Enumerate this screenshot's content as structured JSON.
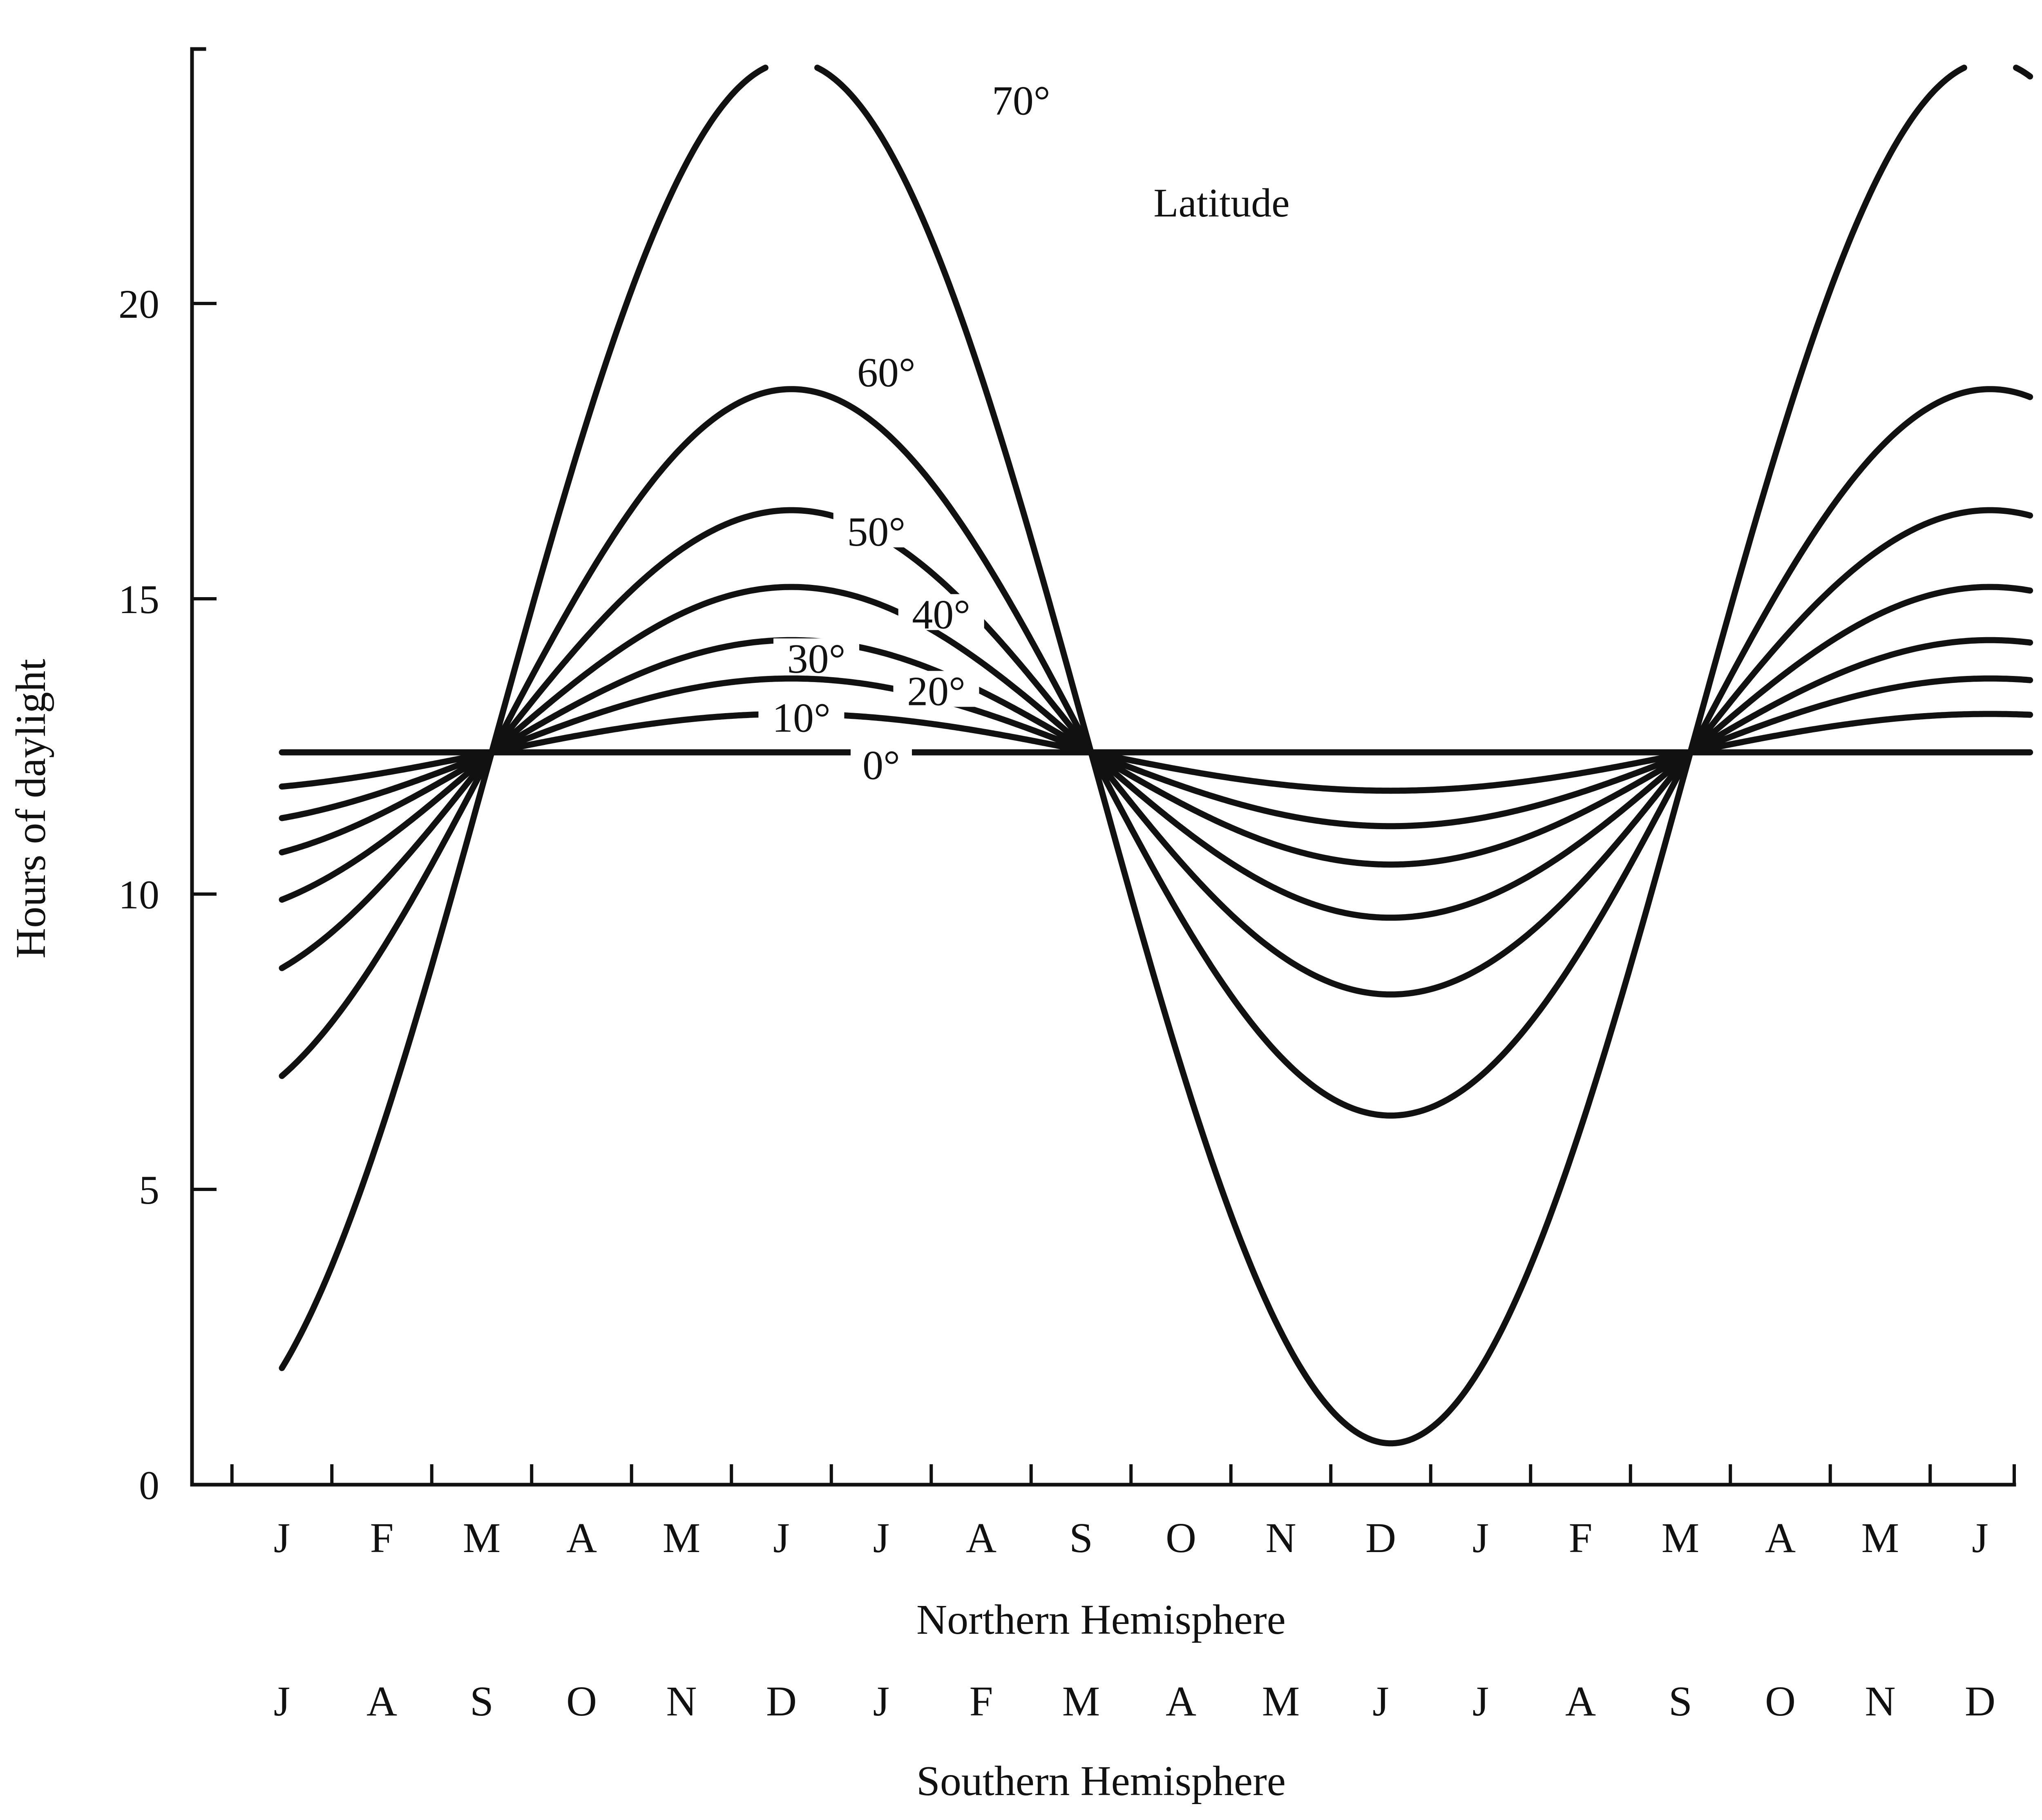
{
  "chart_data": {
    "type": "line",
    "title": "",
    "ylabel": "Hours of daylight",
    "ylim": [
      0,
      24
    ],
    "yticks": [
      0,
      5,
      10,
      15,
      20
    ],
    "grid": false,
    "legend_title": "Latitude",
    "x_axis_northern": {
      "title": "Northern Hemisphere",
      "months": [
        "J",
        "F",
        "M",
        "A",
        "M",
        "J",
        "J",
        "A",
        "S",
        "O",
        "N",
        "D",
        "J",
        "F",
        "M",
        "A",
        "M",
        "J"
      ]
    },
    "x_axis_southern": {
      "title": "Southern Hemisphere",
      "months": [
        "J",
        "A",
        "S",
        "O",
        "N",
        "D",
        "J",
        "F",
        "M",
        "A",
        "M",
        "J",
        "J",
        "A",
        "S",
        "O",
        "N",
        "D"
      ]
    },
    "x_unit": "months from the start of January (Northern Hemisphere)",
    "x_range": [
      0,
      17.5
    ],
    "day_length_model": "12.4 hours plus or minus an amplitude depending on latitude, peaking at the June solstice; the curve is only drawn where the day is between about 0.6 and 24 hours",
    "series": [
      {
        "label": "0°",
        "latitude": 0,
        "min_hours": 12.4,
        "max_hours": 12.4
      },
      {
        "label": "10°",
        "latitude": 10,
        "min_hours": 11.7,
        "max_hours": 13.0
      },
      {
        "label": "20°",
        "latitude": 20,
        "min_hours": 11.1,
        "max_hours": 13.6
      },
      {
        "label": "30°",
        "latitude": 30,
        "min_hours": 10.5,
        "max_hours": 14.3
      },
      {
        "label": "40°",
        "latitude": 40,
        "min_hours": 9.6,
        "max_hours": 15.2
      },
      {
        "label": "50°",
        "latitude": 50,
        "min_hours": 8.3,
        "max_hours": 16.5
      },
      {
        "label": "60°",
        "latitude": 60,
        "min_hours": 6.4,
        "max_hours": 18.7
      },
      {
        "label": "70°",
        "latitude": 70,
        "min_hours": 0.6,
        "max_hours": 24.0
      }
    ]
  }
}
